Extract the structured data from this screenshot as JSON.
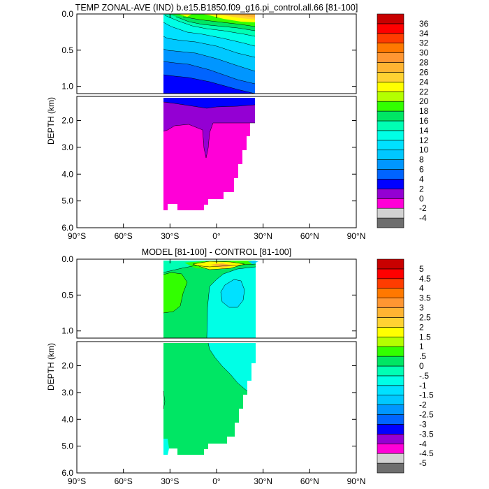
{
  "chart_data": [
    {
      "type": "contour",
      "title": "TEMP ZONAL-AVE (IND) b.e15.B1850.f09_g16.pi_control.all.66 [81-100]",
      "ylabel": "DEPTH (km)",
      "xlabel": "",
      "x_ticks": [
        "90°S",
        "60°S",
        "30°S",
        "0°",
        "30°N",
        "60°N",
        "90°N"
      ],
      "xlim": [
        -90,
        90
      ],
      "upper_panel": {
        "ylim": [
          0,
          1.1
        ],
        "y_ticks": [
          "0.0",
          "0.5",
          "1.0"
        ]
      },
      "lower_panel": {
        "ylim": [
          1.1,
          6.0
        ],
        "y_ticks": [
          "2.0",
          "3.0",
          "4.0",
          "5.0",
          "6.0"
        ]
      },
      "colorbar": {
        "levels": [
          "-4",
          "-2",
          "0",
          "2",
          "4",
          "6",
          "8",
          "10",
          "12",
          "14",
          "16",
          "18",
          "20",
          "22",
          "24",
          "26",
          "28",
          "30",
          "32",
          "34",
          "36"
        ],
        "colors": [
          "#6e6e6e",
          "#d2d2d2",
          "#ff00d7",
          "#9400d3",
          "#0000ff",
          "#0064ff",
          "#0096ff",
          "#00c8ff",
          "#00e1ff",
          "#00ffe6",
          "#00ffb4",
          "#00e664",
          "#32ff00",
          "#b4ff00",
          "#ffff00",
          "#ffd232",
          "#ffb432",
          "#ff9632",
          "#ff7800",
          "#ff3c00",
          "#ff0000",
          "#c80000"
        ]
      }
    },
    {
      "type": "contour",
      "title": "MODEL [81-100] - CONTROL [81-100]",
      "ylabel": "DEPTH (km)",
      "xlabel": "",
      "x_ticks": [
        "90°S",
        "60°S",
        "30°S",
        "0°",
        "30°N",
        "60°N",
        "90°N"
      ],
      "xlim": [
        -90,
        90
      ],
      "upper_panel": {
        "ylim": [
          0,
          1.1
        ],
        "y_ticks": [
          "0.0",
          "0.5",
          "1.0"
        ]
      },
      "lower_panel": {
        "ylim": [
          1.1,
          6.0
        ],
        "y_ticks": [
          "2.0",
          "3.0",
          "4.0",
          "5.0",
          "6.0"
        ]
      },
      "colorbar": {
        "levels": [
          "-5",
          "-4.5",
          "-4",
          "-3.5",
          "-3",
          "-2.5",
          "-2",
          "-1.5",
          "-1",
          "-.5",
          "0",
          ".5",
          "1",
          "1.5",
          "2",
          "2.5",
          "3",
          "3.5",
          "4",
          "4.5",
          "5"
        ],
        "colors": [
          "#6e6e6e",
          "#d2d2d2",
          "#ff00d7",
          "#9400d3",
          "#0000ff",
          "#0064ff",
          "#0096ff",
          "#00c8ff",
          "#00e1ff",
          "#00ffe6",
          "#00ffb4",
          "#00e664",
          "#32ff00",
          "#b4ff00",
          "#ffff00",
          "#ffd232",
          "#ffb432",
          "#ff9632",
          "#ff7800",
          "#ff3c00",
          "#ff0000",
          "#c80000"
        ]
      }
    }
  ]
}
